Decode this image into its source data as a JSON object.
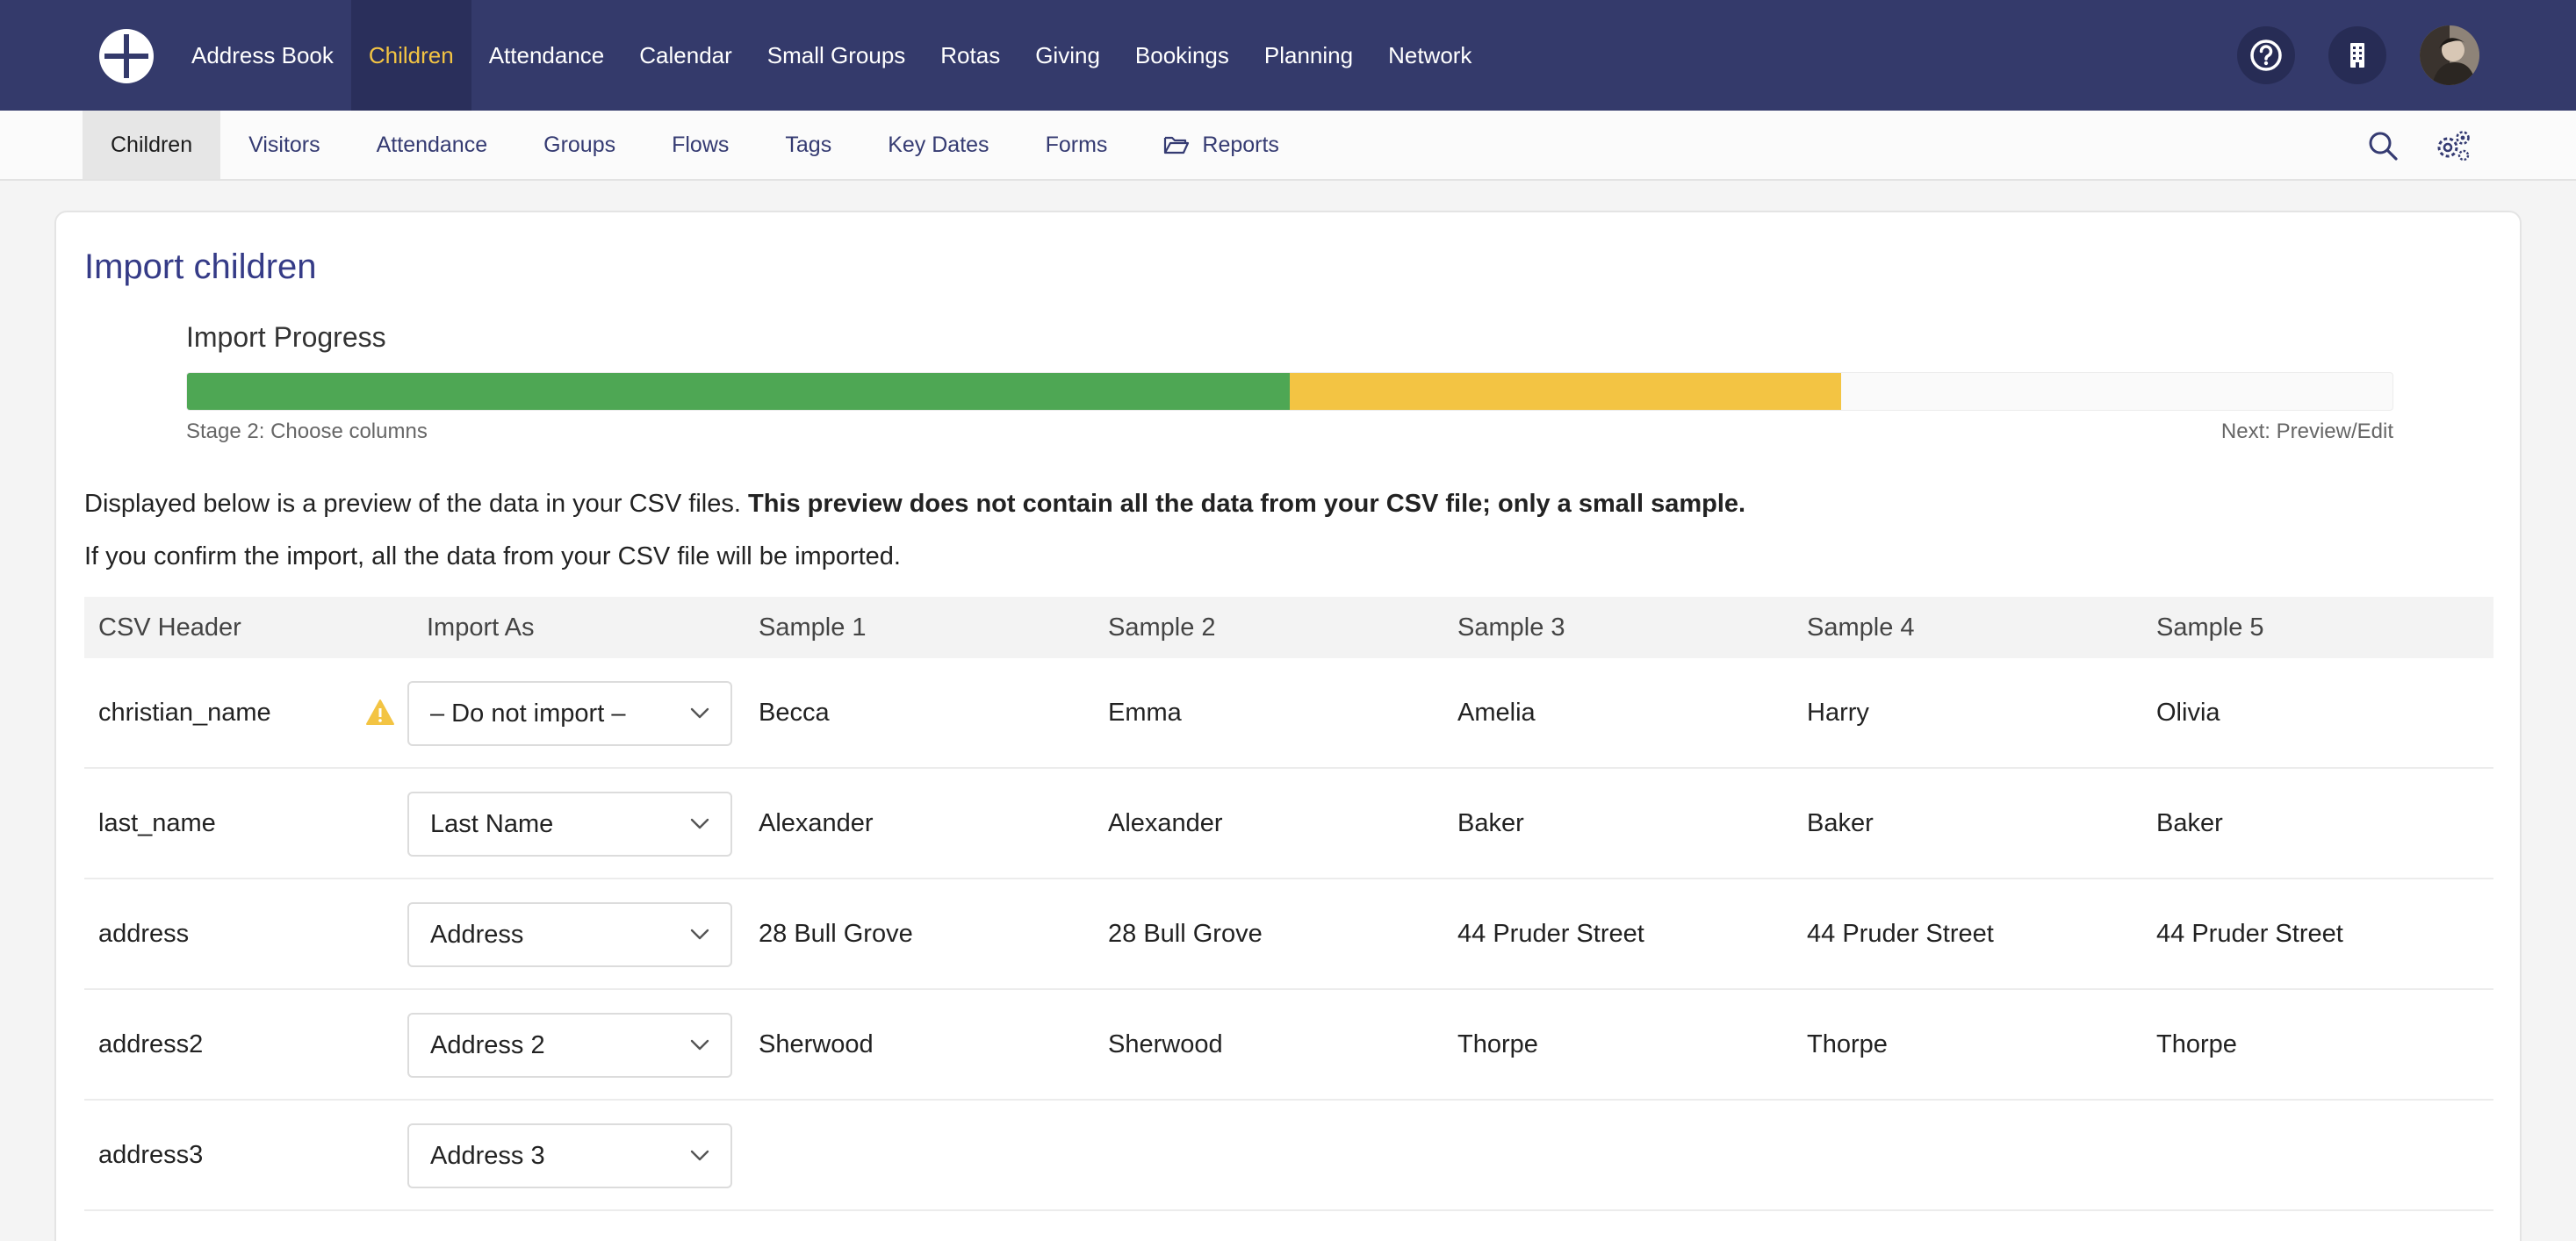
{
  "topnav": {
    "items": [
      {
        "label": "Address Book",
        "active": false
      },
      {
        "label": "Children",
        "active": true
      },
      {
        "label": "Attendance",
        "active": false
      },
      {
        "label": "Calendar",
        "active": false
      },
      {
        "label": "Small Groups",
        "active": false
      },
      {
        "label": "Rotas",
        "active": false
      },
      {
        "label": "Giving",
        "active": false
      },
      {
        "label": "Bookings",
        "active": false
      },
      {
        "label": "Planning",
        "active": false
      },
      {
        "label": "Network",
        "active": false
      }
    ],
    "icons": [
      "logo-icon",
      "help-icon",
      "building-icon",
      "avatar"
    ]
  },
  "subnav": {
    "items": [
      {
        "label": "Children",
        "active": true
      },
      {
        "label": "Visitors",
        "active": false
      },
      {
        "label": "Attendance",
        "active": false
      },
      {
        "label": "Groups",
        "active": false
      },
      {
        "label": "Flows",
        "active": false
      },
      {
        "label": "Tags",
        "active": false
      },
      {
        "label": "Key Dates",
        "active": false
      },
      {
        "label": "Forms",
        "active": false
      },
      {
        "label": "Reports",
        "active": false,
        "icon": "folder-open-icon"
      }
    ],
    "icons": [
      "search-icon",
      "settings-gears-icon"
    ]
  },
  "page": {
    "title": "Import children",
    "progress": {
      "title": "Import Progress",
      "completed_fraction": 0.5,
      "current_fraction": 0.25,
      "stage_label": "Stage 2: Choose columns",
      "next_label": "Next: Preview/Edit"
    },
    "info_line1_normal": "Displayed below is a preview of the data in your CSV files. ",
    "info_line1_bold": "This preview does not contain all the data from your CSV file; only a small sample.",
    "info_line2": "If you confirm the import, all the data from your CSV file will be imported."
  },
  "colors": {
    "topbar": "#343a6b",
    "active_nav_text": "#f3c443",
    "progress_done": "#4ea754",
    "progress_current": "#f3c443",
    "title": "#353b87"
  },
  "table": {
    "headers": [
      "CSV Header",
      "Import As",
      "Sample 1",
      "Sample 2",
      "Sample 3",
      "Sample 4",
      "Sample 5"
    ],
    "rows": [
      {
        "csv": "christian_name",
        "warning": true,
        "import_as": "– Do not import –",
        "samples": [
          "Becca",
          "Emma",
          "Amelia",
          "Harry",
          "Olivia"
        ]
      },
      {
        "csv": "last_name",
        "warning": false,
        "import_as": "Last Name",
        "samples": [
          "Alexander",
          "Alexander",
          "Baker",
          "Baker",
          "Baker"
        ]
      },
      {
        "csv": "address",
        "warning": false,
        "import_as": "Address",
        "samples": [
          "28 Bull Grove",
          "28 Bull Grove",
          "44 Pruder Street",
          "44 Pruder Street",
          "44 Pruder Street"
        ]
      },
      {
        "csv": "address2",
        "warning": false,
        "import_as": "Address 2",
        "samples": [
          "Sherwood",
          "Sherwood",
          "Thorpe",
          "Thorpe",
          "Thorpe"
        ]
      },
      {
        "csv": "address3",
        "warning": false,
        "import_as": "Address 3",
        "samples": [
          "",
          "",
          "",
          "",
          ""
        ]
      }
    ]
  }
}
